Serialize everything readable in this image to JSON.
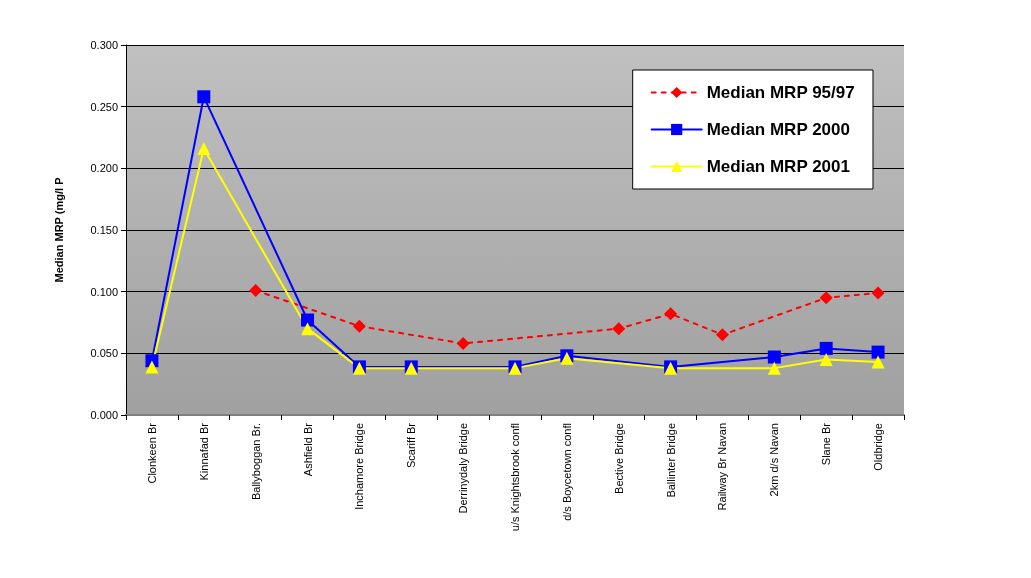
{
  "chart_data": {
    "type": "line",
    "ylabel": "Median MRP (mg/l P",
    "categories": [
      "Clonkeen Br",
      "Kinnafad Br",
      "Ballyboggan Br.",
      "Ashfield Br",
      "Inchamore Bridge",
      "Scariff Br",
      "Derrinydaly Bridge",
      "u/s Knightsbrook confl",
      "d/s Boycetown confl",
      "Bective Bridge",
      "Ballinter Bridge",
      "Railway Br Navan",
      "2km d/s Navan",
      "Slane Br",
      "Oldbridge"
    ],
    "series": [
      {
        "name": "Median MRP 95/97",
        "color": "#ff0000",
        "marker": "diamond",
        "line_style": "dotted",
        "values": [
          null,
          null,
          0.101,
          null,
          0.072,
          null,
          0.058,
          null,
          null,
          0.07,
          0.082,
          0.065,
          null,
          0.095,
          0.099
        ]
      },
      {
        "name": "Median MRP 2000",
        "color": "#0000ff",
        "marker": "square",
        "line_style": "solid",
        "values": [
          0.044,
          0.258,
          null,
          0.077,
          0.039,
          0.039,
          null,
          0.039,
          0.048,
          null,
          0.039,
          null,
          0.047,
          0.054,
          0.051
        ]
      },
      {
        "name": "Median MRP 2001",
        "color": "#ffff00",
        "marker": "triangle",
        "line_style": "solid",
        "values": [
          0.039,
          0.216,
          null,
          0.07,
          0.038,
          0.038,
          null,
          0.038,
          0.046,
          null,
          0.038,
          null,
          0.038,
          0.045,
          0.043
        ]
      }
    ],
    "ylim": [
      0,
      0.3
    ],
    "yticks": [
      {
        "value": 0,
        "label": "0.000"
      },
      {
        "value": 0.05,
        "label": "0.050"
      },
      {
        "value": 0.1,
        "label": "0.100"
      },
      {
        "value": 0.15,
        "label": "0.150"
      },
      {
        "value": 0.2,
        "label": "0.200"
      },
      {
        "value": 0.25,
        "label": "0.250"
      },
      {
        "value": 0.3,
        "label": "0.300"
      }
    ],
    "grid": "y",
    "legend": "top right"
  }
}
